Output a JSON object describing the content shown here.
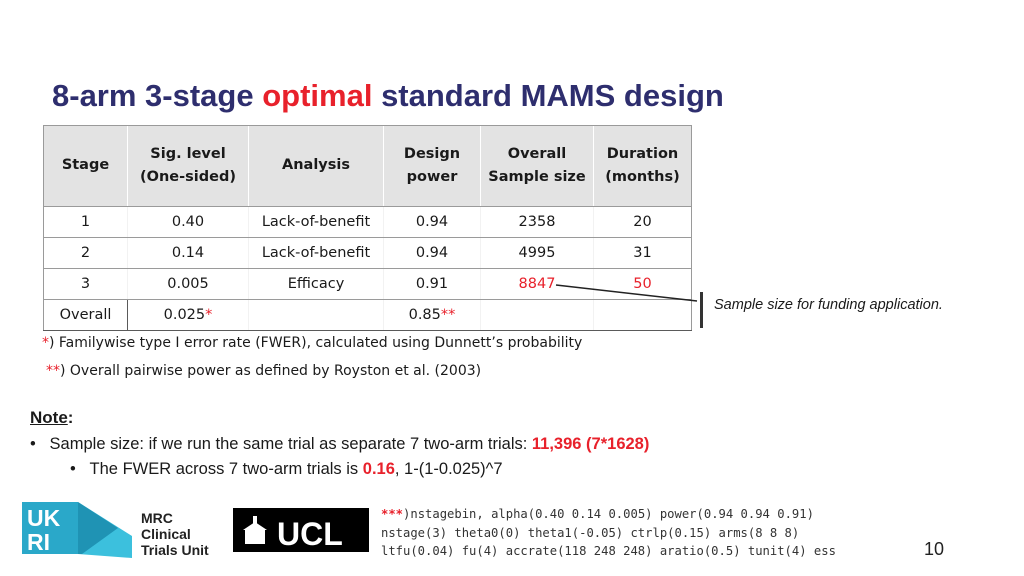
{
  "title": {
    "part1": "8-arm 3-stage ",
    "part2": "optimal",
    "part3": " standard MAMS design"
  },
  "table": {
    "headers": [
      [
        "Stage"
      ],
      [
        "Sig. level",
        "(One-sided)"
      ],
      [
        "Analysis"
      ],
      [
        "Design",
        "power"
      ],
      [
        "Overall",
        "Sample size"
      ],
      [
        "Duration",
        "(months)"
      ]
    ],
    "rows": [
      [
        "1",
        "0.40",
        "Lack-of-benefit",
        "0.94",
        "2358",
        "20"
      ],
      [
        "2",
        "0.14",
        "Lack-of-benefit",
        "0.94",
        "4995",
        "31"
      ],
      [
        "3",
        "0.005",
        "Efficacy",
        "0.91",
        "8847",
        "50"
      ]
    ],
    "overall": {
      "label": "Overall",
      "sig": "0.025",
      "sig_mark": "*",
      "power": "0.85",
      "power_mark": "**"
    }
  },
  "callout": "Sample size for funding application.",
  "footnotes": {
    "f1_mark": "*",
    "f1_text": ") Familywise type I error rate (FWER), calculated using Dunnett’s probability",
    "f2_mark": "**",
    "f2_text": ") Overall pairwise power as defined by Royston et al. (2003)"
  },
  "note": {
    "heading": "Note",
    "colon": ":",
    "bullet1_marker": "•",
    "bullet1_text": "Sample size: if we run the same trial as separate 7 two-arm trials: ",
    "bullet1_highlight": "11,396 (7*1628)",
    "bullet2_marker": "•",
    "bullet2_text_a": "The FWER across 7 two-arm trials is ",
    "bullet2_highlight": "0.16",
    "bullet2_text_b": ", 1-(1-0.025)^7"
  },
  "code": {
    "mark": "***",
    "line1": ")nstagebin, alpha(0.40 0.14 0.005) power(0.94 0.94 0.91)",
    "line2": "nstage(3) theta0(0) theta1(-0.05) ctrlp(0.15) arms(8 8 8)",
    "line3": "ltfu(0.04) fu(4) accrate(118 248 248) aratio(0.5) tunit(4) ess"
  },
  "logos": {
    "ukri": "UKRI",
    "mrc_line1": "MRC",
    "mrc_line2": "Clinical",
    "mrc_line3": "Trials Unit",
    "ucl": "UCL"
  },
  "page_number": "10",
  "colors": {
    "title": "#2e2e6e",
    "accent_red": "#e8212b",
    "header_bg": "#e3e3e3",
    "ukri_teal": "#2aa8c9"
  }
}
